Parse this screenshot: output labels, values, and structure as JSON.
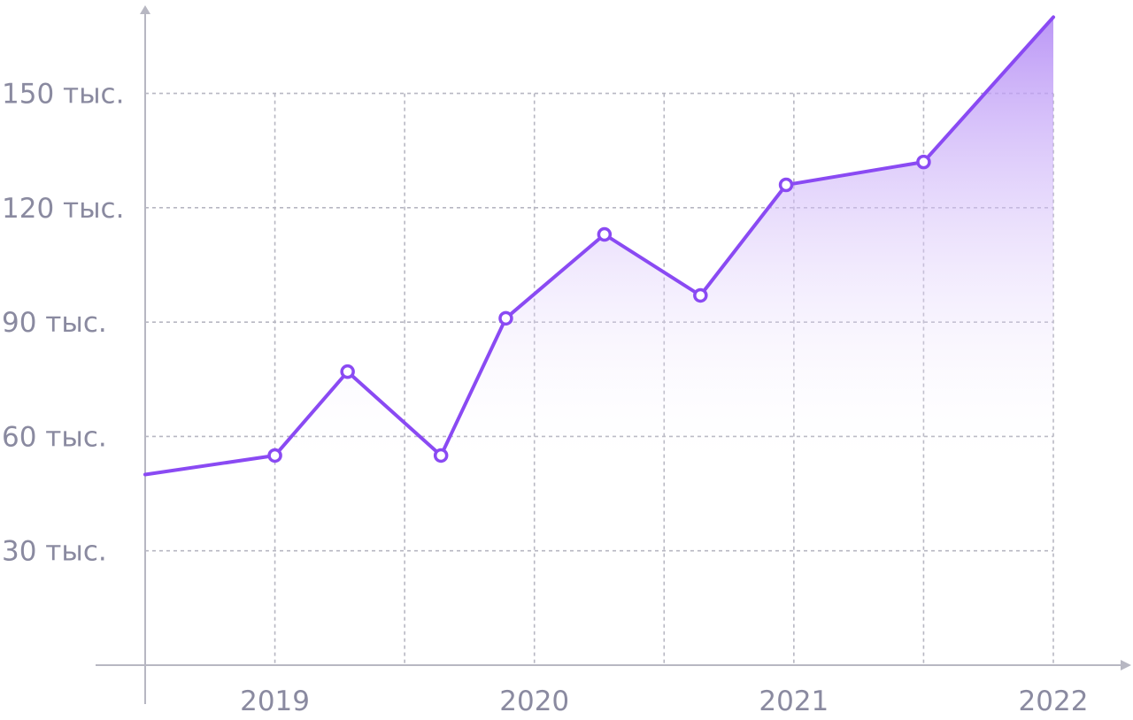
{
  "chart_data": {
    "type": "area",
    "title": "",
    "xlabel": "",
    "ylabel": "",
    "x_ticks": [
      "2019",
      "2020",
      "2021",
      "2022"
    ],
    "y_ticks": [
      "30 тыс.",
      "60 тыс.",
      "90 тыс.",
      "120 тыс.",
      "150 тыс."
    ],
    "x_domain": [
      2018.5,
      2022
    ],
    "y_domain": [
      0,
      168000
    ],
    "grid": true,
    "legend": "none",
    "colors": {
      "line": "#8a4af3",
      "fill_top": "#b48cf5",
      "fill_bottom": "#ffffff",
      "grid": "#b7b7c2",
      "axis": "#b7b7c2",
      "tick_text": "#8a8aa0"
    },
    "series": [
      {
        "points": [
          {
            "x": 2018.5,
            "y": 50000,
            "marker": false
          },
          {
            "x": 2019.0,
            "y": 55000,
            "marker": true
          },
          {
            "x": 2019.28,
            "y": 77000,
            "marker": true
          },
          {
            "x": 2019.64,
            "y": 55000,
            "marker": true
          },
          {
            "x": 2019.89,
            "y": 91000,
            "marker": true
          },
          {
            "x": 2020.27,
            "y": 113000,
            "marker": true
          },
          {
            "x": 2020.64,
            "y": 97000,
            "marker": true
          },
          {
            "x": 2020.97,
            "y": 126000,
            "marker": true
          },
          {
            "x": 2021.5,
            "y": 132000,
            "marker": true
          },
          {
            "x": 2022.0,
            "y": 170000,
            "marker": false
          }
        ]
      }
    ]
  }
}
